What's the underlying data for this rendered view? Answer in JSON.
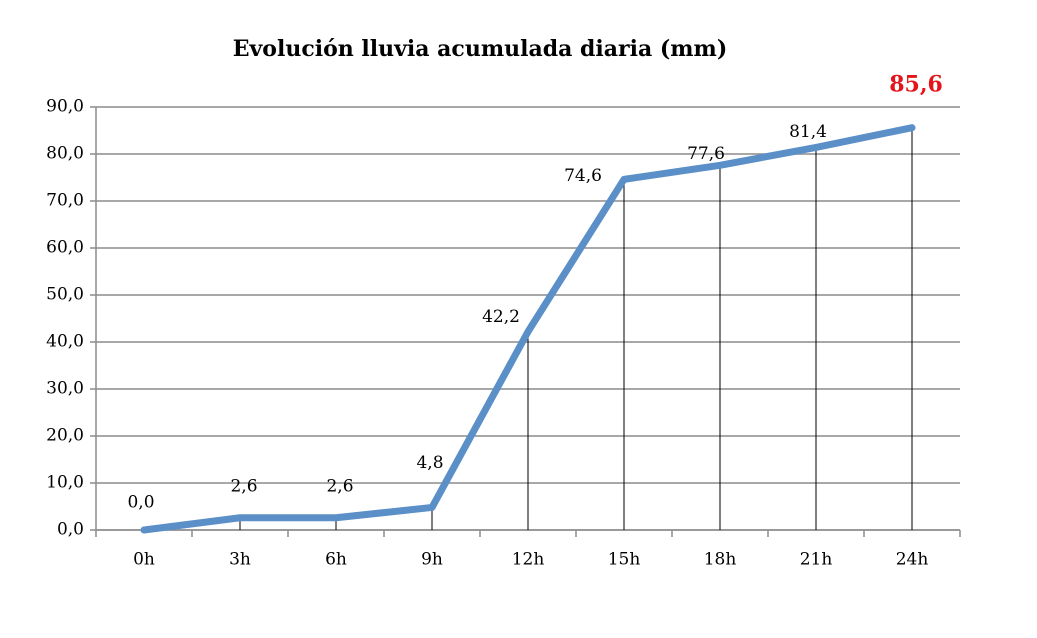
{
  "chart_data": {
    "type": "line",
    "title": "Evolución lluvia acumulada diaria (mm)",
    "categories": [
      "0h",
      "3h",
      "6h",
      "9h",
      "12h",
      "15h",
      "18h",
      "21h",
      "24h"
    ],
    "values": [
      0.0,
      2.6,
      2.6,
      4.8,
      42.2,
      74.6,
      77.6,
      81.4,
      85.6
    ],
    "value_labels": [
      "0,0",
      "2,6",
      "2,6",
      "4,8",
      "42,2",
      "74,6",
      "77,6",
      "81,4",
      "85,6"
    ],
    "color": "#5b8fc7",
    "ylim": [
      0,
      90
    ],
    "yticks": [
      {
        "value": 0,
        "label": "0,0"
      },
      {
        "value": 10,
        "label": "10,0"
      },
      {
        "value": 20,
        "label": "20,0"
      },
      {
        "value": 30,
        "label": "30,0"
      },
      {
        "value": 40,
        "label": "40,0"
      },
      {
        "value": 50,
        "label": "50,0"
      },
      {
        "value": 60,
        "label": "60,0"
      },
      {
        "value": 70,
        "label": "70,0"
      },
      {
        "value": 80,
        "label": "80,0"
      },
      {
        "value": 90,
        "label": "90,0"
      }
    ],
    "grid": true
  }
}
